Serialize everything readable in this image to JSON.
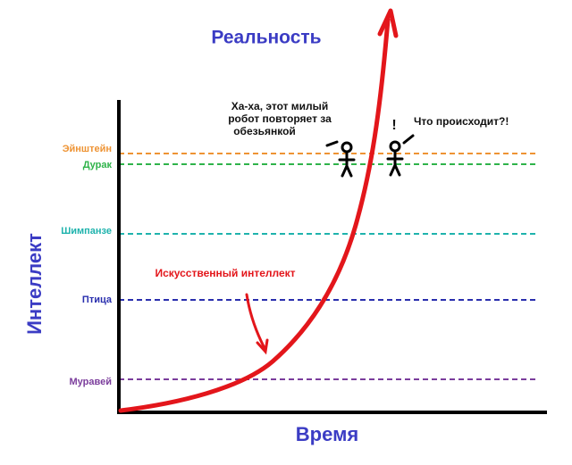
{
  "title": "Реальность",
  "y_label": "Интеллект",
  "x_label": "Время",
  "levels": [
    {
      "label": "Эйнштейн",
      "color": "#ee9333"
    },
    {
      "label": "Дурак",
      "color": "#2fb34a"
    },
    {
      "label": "Шимпанзе",
      "color": "#1fb3ad"
    },
    {
      "label": "Птица",
      "color": "#2a2fae"
    },
    {
      "label": "Муравей",
      "color": "#7b3d9c"
    }
  ],
  "ai_label": "Искусственный интеллект",
  "speech_left": [
    "Ха-ха, этот милый",
    "робот повторяет за",
    "обезьянкой"
  ],
  "speech_right": "Что происходит?!",
  "exclamation": "!"
}
